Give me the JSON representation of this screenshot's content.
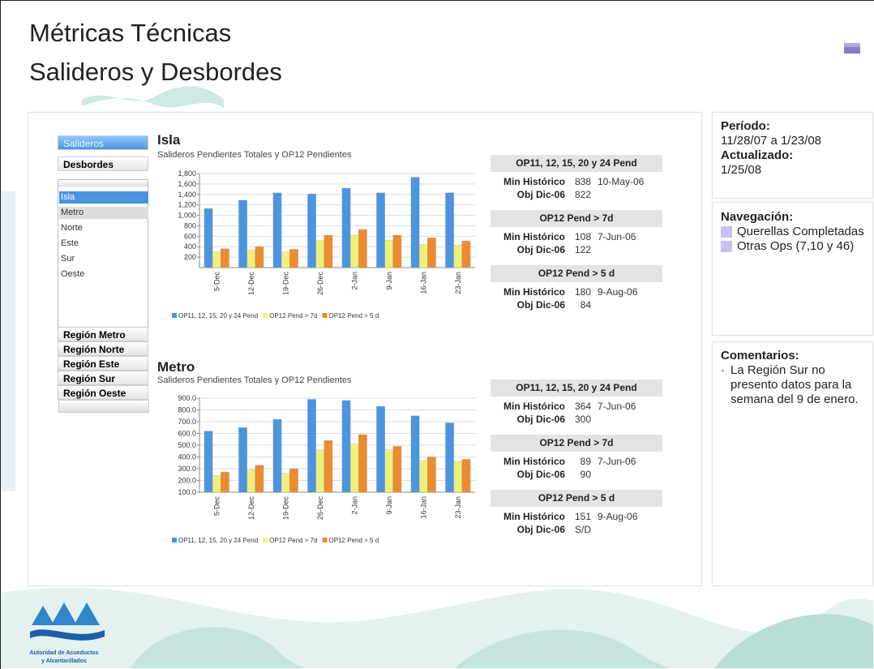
{
  "header": {
    "title": "Métricas Técnicas",
    "subtitle": "Salideros y Desbordes"
  },
  "sidebar": {
    "tabs": [
      "Salideros",
      "Desbordes"
    ],
    "list": [
      "Isla",
      "Metro",
      "Norte",
      "Este",
      "Sur",
      "Oeste"
    ],
    "regions": [
      "Región Metro",
      "Región Norte",
      "Región Este",
      "Región Sur",
      "Región Oeste"
    ]
  },
  "chart_data": [
    {
      "type": "bar",
      "title": "Isla",
      "subtitle": "Salideros Pendientes Totales y OP12 Pendientes",
      "categories": [
        "5-Dec",
        "12-Dec",
        "19-Dec",
        "26-Dec",
        "2-Jan",
        "9-Jan",
        "16-Jan",
        "23-Jan"
      ],
      "series": [
        {
          "name": "OP11, 12, 15, 20 y 24 Pend",
          "color": "#4a94e0",
          "values": [
            1130,
            1290,
            1430,
            1410,
            1520,
            1430,
            1730,
            1430
          ]
        },
        {
          "name": "OP12 Pend > 7d",
          "color": "#eef07a",
          "values": [
            300,
            330,
            300,
            520,
            620,
            520,
            440,
            430
          ]
        },
        {
          "name": "OP12 Pend > 5 d",
          "color": "#ee8a30",
          "values": [
            360,
            400,
            350,
            620,
            730,
            620,
            570,
            510
          ]
        }
      ],
      "ylim": [
        0,
        1800
      ],
      "yticks": [
        200,
        400,
        600,
        800,
        {
          "value": 1000,
          "label": "1,000"
        },
        {
          "value": 1200,
          "label": "1,200"
        },
        {
          "value": 1400,
          "label": "1,400"
        },
        {
          "value": 1600,
          "label": "1,600"
        },
        {
          "value": 1800,
          "label": "1,800"
        }
      ],
      "grid": true
    },
    {
      "type": "bar",
      "title": "Metro",
      "subtitle": "Salideros Pendientes Totales y OP12 Pendientes",
      "categories": [
        "5-Dec",
        "12-Dec",
        "19-Dec",
        "26-Dec",
        "2-Jan",
        "9-Jan",
        "16-Jan",
        "23-Jan"
      ],
      "series": [
        {
          "name": "OP11, 12, 15, 20 y 24 Pend",
          "color": "#4a94e0",
          "values": [
            620,
            650,
            720,
            890,
            880,
            830,
            750,
            690
          ]
        },
        {
          "name": "OP12 Pend > 7d",
          "color": "#eef07a",
          "values": [
            240,
            290,
            260,
            460,
            510,
            460,
            370,
            360
          ]
        },
        {
          "name": "OP12 Pend > 5 d",
          "color": "#ee8a30",
          "values": [
            270,
            330,
            300,
            540,
            590,
            490,
            400,
            380
          ]
        }
      ],
      "ylim": [
        100,
        900
      ],
      "yticks": [
        {
          "value": 100,
          "label": "100.0"
        },
        {
          "value": 200,
          "label": "200.0"
        },
        {
          "value": 300,
          "label": "300.0"
        },
        {
          "value": 400,
          "label": "400.0"
        },
        {
          "value": 500,
          "label": "500.0"
        },
        {
          "value": 600,
          "label": "600.0"
        },
        {
          "value": 700,
          "label": "700.0"
        },
        {
          "value": 800,
          "label": "800.0"
        },
        {
          "value": 900,
          "label": "900.0"
        }
      ],
      "grid": true
    }
  ],
  "stats": [
    [
      {
        "header": "OP11, 12, 15, 20 y 24 Pend",
        "rows": [
          [
            "Min Histórico",
            838,
            "10-May-06"
          ],
          [
            "Obj Dic-06",
            822
          ]
        ]
      },
      {
        "header": "OP12 Pend > 7d",
        "rows": [
          [
            "Min Histórico",
            108,
            "7-Jun-06"
          ],
          [
            "Obj Dic-06",
            122
          ]
        ]
      },
      {
        "header": "OP12 Pend > 5 d",
        "rows": [
          [
            "Min Histórico",
            180,
            "9-Aug-06"
          ],
          [
            "Obj Dic-06",
            84
          ]
        ]
      }
    ],
    [
      {
        "header": "OP11, 12, 15, 20 y 24 Pend",
        "rows": [
          [
            "Min Histórico",
            364,
            "7-Jun-06"
          ],
          [
            "Obj Dic-06",
            300
          ]
        ]
      },
      {
        "header": "OP12 Pend > 7d",
        "rows": [
          [
            "Min Histórico",
            89,
            "7-Jun-06"
          ],
          [
            "Obj Dic-06",
            90
          ]
        ]
      },
      {
        "header": "OP12 Pend > 5 d",
        "rows": [
          [
            "Min Histórico",
            151,
            "9-Aug-06"
          ],
          [
            "Obj Dic-06",
            "S/D"
          ]
        ]
      }
    ]
  ],
  "period": {
    "label": "Período:",
    "value": "11/28/07 a 1/23/08",
    "updated_label": "Actualizado:",
    "updated": "1/25/08"
  },
  "navigation": {
    "title": "Navegación:",
    "links": [
      "Querellas Completadas",
      "Otras Ops (7,10 y 46)"
    ]
  },
  "comments": {
    "title": "Comentarios:",
    "items": [
      "La Región Sur no presento datos para la semana del 9 de enero."
    ]
  },
  "footer": {
    "org": [
      "Autoridad de Acueductos",
      "y Alcantarillados"
    ]
  }
}
